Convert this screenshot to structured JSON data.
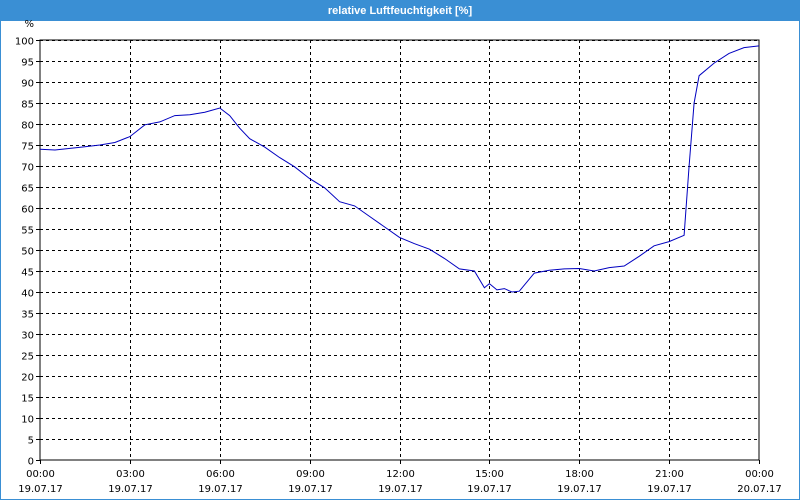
{
  "window": {
    "title": "relative Luftfeuchtigkeit [%]"
  },
  "colors": {
    "titlebar": "#3a8fd4",
    "line": "#0000c0",
    "grid": "#000000"
  },
  "chart_data": {
    "type": "line",
    "title": "relative Luftfeuchtigkeit [%]",
    "ylabel": "%",
    "ylim": [
      0,
      100
    ],
    "ytick_step": 5,
    "grid": true,
    "x_ticks": [
      {
        "time": "00:00",
        "date": "19.07.17"
      },
      {
        "time": "03:00",
        "date": "19.07.17"
      },
      {
        "time": "06:00",
        "date": "19.07.17"
      },
      {
        "time": "09:00",
        "date": "19.07.17"
      },
      {
        "time": "12:00",
        "date": "19.07.17"
      },
      {
        "time": "15:00",
        "date": "19.07.17"
      },
      {
        "time": "18:00",
        "date": "19.07.17"
      },
      {
        "time": "21:00",
        "date": "19.07.17"
      },
      {
        "time": "00:00",
        "date": "20.07.17"
      }
    ],
    "series": [
      {
        "points": [
          [
            "19.07.17 00:00",
            74
          ],
          [
            "19.07.17 00:30",
            73.8
          ],
          [
            "19.07.17 01:00",
            74.2
          ],
          [
            "19.07.17 01:30",
            74.6
          ],
          [
            "19.07.17 02:00",
            75
          ],
          [
            "19.07.17 02:30",
            75.6
          ],
          [
            "19.07.17 03:00",
            77
          ],
          [
            "19.07.17 03:30",
            79.8
          ],
          [
            "19.07.17 04:00",
            80.5
          ],
          [
            "19.07.17 04:30",
            82
          ],
          [
            "19.07.17 05:00",
            82.2
          ],
          [
            "19.07.17 05:30",
            82.8
          ],
          [
            "19.07.17 06:00",
            83.8
          ],
          [
            "19.07.17 06:20",
            82
          ],
          [
            "19.07.17 06:40",
            79
          ],
          [
            "19.07.17 07:00",
            76.5
          ],
          [
            "19.07.17 07:30",
            74.5
          ],
          [
            "19.07.17 08:00",
            72
          ],
          [
            "19.07.17 08:30",
            69.8
          ],
          [
            "19.07.17 09:00",
            67
          ],
          [
            "19.07.17 09:30",
            64.8
          ],
          [
            "19.07.17 10:00",
            61.5
          ],
          [
            "19.07.17 10:30",
            60.5
          ],
          [
            "19.07.17 11:00",
            58
          ],
          [
            "19.07.17 11:30",
            55.5
          ],
          [
            "19.07.17 12:00",
            53
          ],
          [
            "19.07.17 12:30",
            51.5
          ],
          [
            "19.07.17 13:00",
            50.2
          ],
          [
            "19.07.17 13:30",
            48
          ],
          [
            "19.07.17 14:00",
            45.5
          ],
          [
            "19.07.17 14:30",
            45
          ],
          [
            "19.07.17 14:50",
            41
          ],
          [
            "19.07.17 15:00",
            42
          ],
          [
            "19.07.17 15:15",
            40.5
          ],
          [
            "19.07.17 15:30",
            40.8
          ],
          [
            "19.07.17 15:45",
            40
          ],
          [
            "19.07.17 16:00",
            40.2
          ],
          [
            "19.07.17 16:30",
            44.5
          ],
          [
            "19.07.17 17:00",
            45.2
          ],
          [
            "19.07.17 17:30",
            45.5
          ],
          [
            "19.07.17 18:00",
            45.6
          ],
          [
            "19.07.17 18:30",
            45
          ],
          [
            "19.07.17 19:00",
            45.8
          ],
          [
            "19.07.17 19:30",
            46.2
          ],
          [
            "19.07.17 20:00",
            48.5
          ],
          [
            "19.07.17 20:30",
            51
          ],
          [
            "19.07.17 21:00",
            52
          ],
          [
            "19.07.17 21:30",
            53.5
          ],
          [
            "19.07.17 21:40",
            70
          ],
          [
            "19.07.17 21:50",
            85
          ],
          [
            "19.07.17 22:00",
            91.5
          ],
          [
            "19.07.17 22:30",
            94.5
          ],
          [
            "19.07.17 23:00",
            96.8
          ],
          [
            "19.07.17 23:30",
            98.2
          ],
          [
            "20.07.17 00:00",
            98.6
          ]
        ]
      }
    ]
  }
}
